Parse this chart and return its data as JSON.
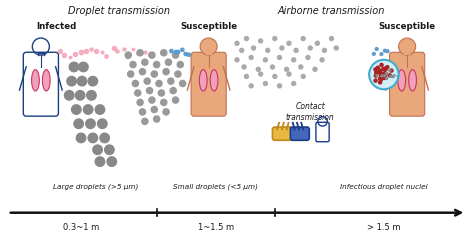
{
  "title_droplet": "Droplet transmission",
  "title_airborne": "Airborne transmission",
  "label_infected": "Infected",
  "label_susceptible1": "Susceptible",
  "label_susceptible2": "Susceptible",
  "label_large": "Large droplets (>5 μm)",
  "label_small": "Small droplets (<5 μm)",
  "label_nuclei": "Infectious droplet nuclei",
  "label_contact": "Contact\ntransmission",
  "label_dist1": "0.3~1 m",
  "label_dist2": "1~1.5 m",
  "label_dist3": "> 1.5 m",
  "bg_color": "#ffffff",
  "text_color": "#1a1a1a",
  "arrow_color": "#111111",
  "large_dot_color": "#888888",
  "small_dot_color": "#999999",
  "airborne_dot_color": "#aaaaaa",
  "body_blue_edge": "#1c3f80",
  "body_blue_fill": "#dde6f5",
  "body_skin_edge": "#c07050",
  "body_skin_fill": "#e8a87c",
  "lung_edge": "#cc3366",
  "lung_fill": "#f0a0b8",
  "virus_edge": "#44aacc",
  "virus_fill": "#d0eef8",
  "virus_dot": "#aa2222",
  "spray_color": "#f5a0b5",
  "airborne_blue": "#5599cc"
}
